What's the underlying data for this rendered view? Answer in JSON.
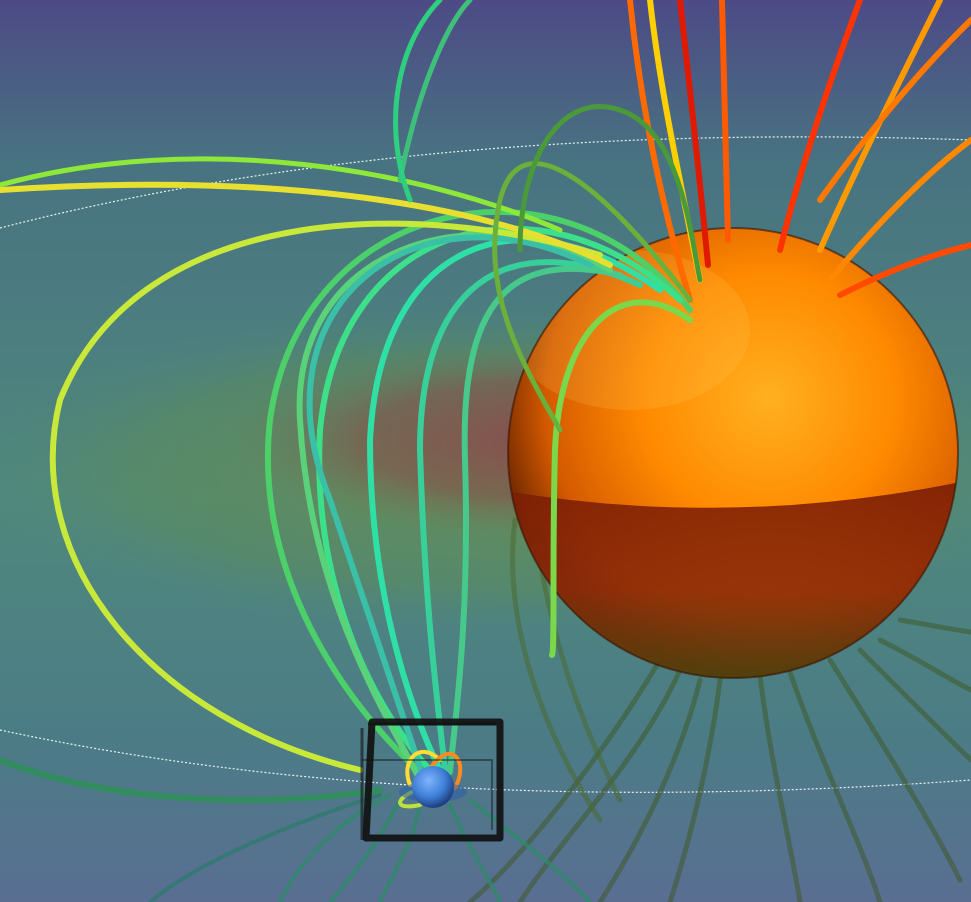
{
  "scene": {
    "description_visible_text": "",
    "colors": {
      "space_top": "#4d4a86",
      "space_mid": "#4a7f84",
      "space_bottom": "#5a6e92",
      "plasma_green": "#5f8d55",
      "plasma_red": "#8b4a4e",
      "star_light": "#ffa31a",
      "star_mid": "#ff7b00",
      "star_dark": "#6a1a00",
      "planet": "#3f7fd6",
      "orbit_line": "#e8f4f2",
      "box": "#111111"
    },
    "icons": [
      "star-sphere-icon",
      "planet-sphere-icon"
    ]
  }
}
